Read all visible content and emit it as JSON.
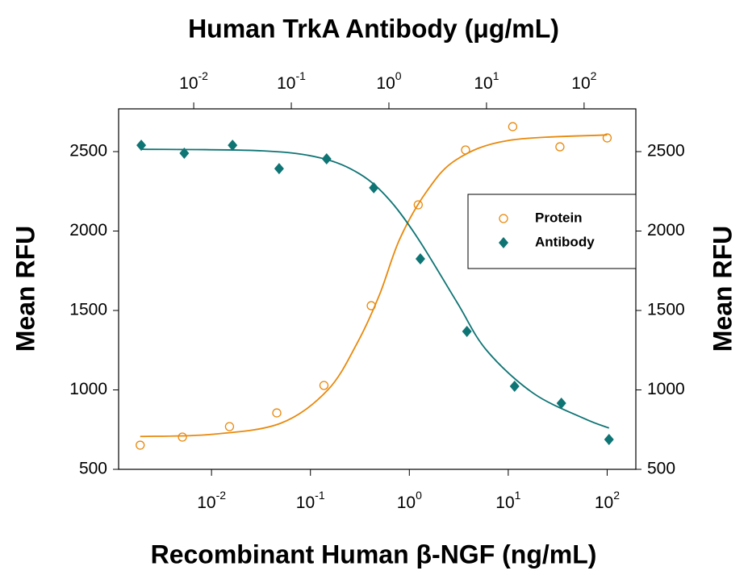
{
  "chart_data": {
    "type": "scatter",
    "x2label": "Human TrkA Antibody (μg/mL)",
    "xlabel": "Recombinant Human β-NGF (ng/mL)",
    "ylabel": "Mean RFU",
    "y2label": "Mean RFU",
    "xscale": "log",
    "x2scale": "log",
    "xlim": [
      0.00115,
      195
    ],
    "x2lim": [
      0.0017,
      339
    ],
    "xticks": [
      {
        "value": 0.01,
        "label": "10",
        "exponent": "-2"
      },
      {
        "value": 0.1,
        "label": "10",
        "exponent": "-1"
      },
      {
        "value": 1,
        "label": "10",
        "exponent": "0"
      },
      {
        "value": 10,
        "label": "10",
        "exponent": "1"
      },
      {
        "value": 100,
        "label": "10",
        "exponent": "2"
      }
    ],
    "x2ticks": [
      {
        "value": 0.01,
        "label": "10",
        "exponent": "-2"
      },
      {
        "value": 0.1,
        "label": "10",
        "exponent": "-1"
      },
      {
        "value": 1,
        "label": "10",
        "exponent": "0"
      },
      {
        "value": 10,
        "label": "10",
        "exponent": "1"
      },
      {
        "value": 100,
        "label": "10",
        "exponent": "2"
      }
    ],
    "ylim": [
      500,
      2769
    ],
    "yticks": [
      500,
      1000,
      1500,
      2000,
      2500
    ],
    "y2lim": [
      500,
      2769
    ],
    "y2ticks": [
      500,
      1000,
      1500,
      2000,
      2500
    ],
    "legend": "upper-right",
    "series": [
      {
        "name": "Protein",
        "color": "#e8890c",
        "marker": "open-circle",
        "xaxis": "x",
        "x": [
          0.0019,
          0.00508,
          0.0152,
          0.0457,
          0.137,
          0.412,
          1.23,
          3.7,
          11.1,
          33.3,
          100
        ],
        "values": [
          652,
          703,
          769,
          855,
          1028,
          1530,
          2165,
          2510,
          2657,
          2530,
          2586
        ],
        "fit_x": [
          0.0019,
          0.01,
          0.05,
          0.15,
          0.3,
          0.5,
          0.8,
          1.5,
          3,
          10,
          100
        ],
        "fit_values": [
          707,
          720,
          790,
          1000,
          1300,
          1600,
          1950,
          2250,
          2450,
          2570,
          2605
        ]
      },
      {
        "name": "Antibody",
        "color": "#0f7474",
        "marker": "diamond",
        "xaxis": "x2",
        "axis": "y2",
        "x": [
          0.0029,
          0.008,
          0.025,
          0.075,
          0.23,
          0.7,
          2.1,
          6.3,
          19.4,
          58.5,
          180
        ],
        "values": [
          2540,
          2490,
          2540,
          2393,
          2454,
          2272,
          1825,
          1368,
          1023,
          916,
          688
        ],
        "fit_x": [
          0.0029,
          0.05,
          0.2,
          0.5,
          1,
          2,
          5,
          10,
          30,
          100,
          180
        ],
        "fit_values": [
          2515,
          2505,
          2460,
          2360,
          2200,
          1950,
          1550,
          1250,
          980,
          820,
          760
        ]
      }
    ]
  }
}
